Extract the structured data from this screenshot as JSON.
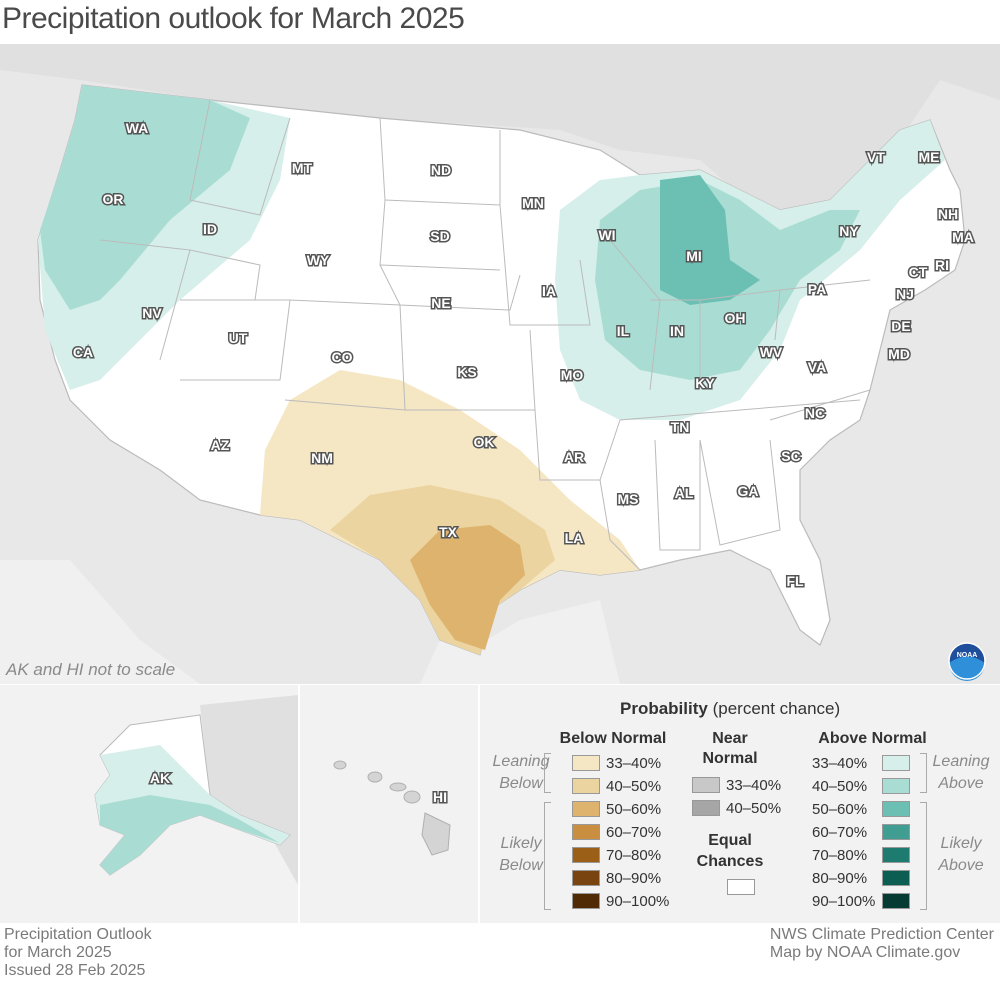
{
  "title": "Precipitation outlook for March 2025",
  "scale_note": "AK and HI not to scale",
  "states": [
    "WA",
    "OR",
    "CA",
    "ID",
    "NV",
    "MT",
    "WY",
    "UT",
    "AZ",
    "CO",
    "NM",
    "ND",
    "SD",
    "NE",
    "KS",
    "OK",
    "TX",
    "MN",
    "IA",
    "MO",
    "AR",
    "LA",
    "WI",
    "IL",
    "MI",
    "IN",
    "OH",
    "KY",
    "TN",
    "MS",
    "AL",
    "GA",
    "FL",
    "SC",
    "NC",
    "VA",
    "WV",
    "PA",
    "NY",
    "VT",
    "ME",
    "NH",
    "MA",
    "RI",
    "CT",
    "NJ",
    "DE",
    "MD",
    "AK",
    "HI"
  ],
  "legend": {
    "title_bold": "Probability",
    "title_rest": " (percent chance)",
    "below_header": "Below Normal",
    "near_header_1": "Near",
    "near_header_2": "Normal",
    "above_header": "Above Normal",
    "equal_1": "Equal",
    "equal_2": "Chances",
    "leaning_below_1": "Leaning",
    "leaning_below_2": "Below",
    "likely_below_1": "Likely",
    "likely_below_2": "Below",
    "leaning_above_1": "Leaning",
    "leaning_above_2": "Above",
    "likely_above_1": "Likely",
    "likely_above_2": "Above",
    "below": [
      {
        "label": "33–40%",
        "color": "#f5e6c4"
      },
      {
        "label": "40–50%",
        "color": "#ecd4a0"
      },
      {
        "label": "50–60%",
        "color": "#ddb36e"
      },
      {
        "label": "60–70%",
        "color": "#c98e3f"
      },
      {
        "label": "70–80%",
        "color": "#9c5f17"
      },
      {
        "label": "80–90%",
        "color": "#7a4410"
      },
      {
        "label": "90–100%",
        "color": "#4f2a05"
      }
    ],
    "near": [
      {
        "label": "33–40%",
        "color": "#c8c8c8"
      },
      {
        "label": "40–50%",
        "color": "#a6a6a6"
      }
    ],
    "above": [
      {
        "label": "33–40%",
        "color": "#d6efea"
      },
      {
        "label": "40–50%",
        "color": "#a9ddd3"
      },
      {
        "label": "50–60%",
        "color": "#6cc0b3"
      },
      {
        "label": "60–70%",
        "color": "#3f9d92"
      },
      {
        "label": "70–80%",
        "color": "#1d7b70"
      },
      {
        "label": "80–90%",
        "color": "#0c5d52"
      },
      {
        "label": "90–100%",
        "color": "#053b33"
      }
    ]
  },
  "footer_left": [
    "Precipitation Outlook",
    "for March 2025",
    "Issued 28 Feb 2025"
  ],
  "footer_right": [
    "NWS Climate Prediction Center",
    "Map by NOAA Climate.gov"
  ],
  "logo_text": "NOAA"
}
